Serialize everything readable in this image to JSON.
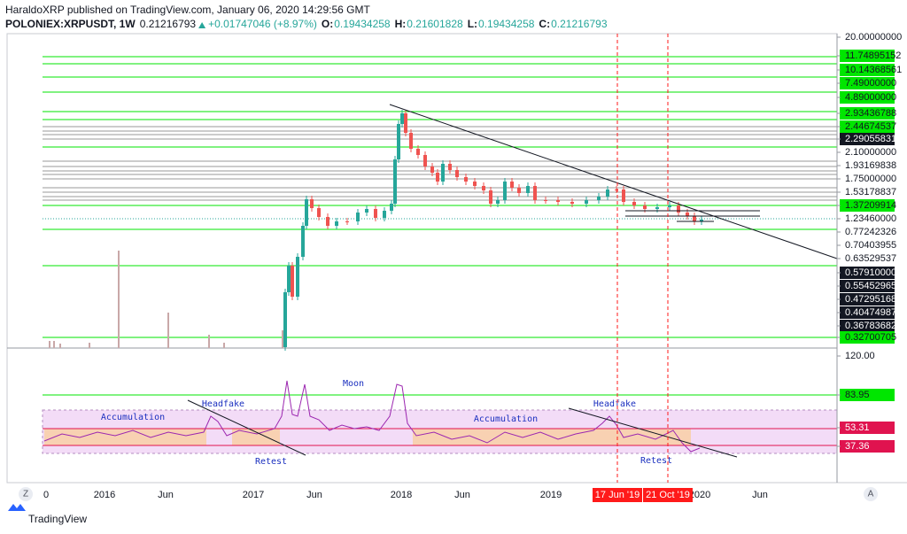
{
  "header": {
    "line1": "HaraldoXRP published on TradingView.com, January 06, 2020 14:29:56 GMT",
    "symbol": "POLONIEX:XRPUSDT, 1W",
    "last": "0.21216793",
    "change": "+0.01747046 (+8.97%)",
    "o_label": "O:",
    "o": "0.19434258",
    "h_label": "H:",
    "h": "0.21601828",
    "l_label": "L:",
    "l": "0.19434258",
    "c_label": "C:",
    "c": "0.21216793"
  },
  "price_scale": [
    {
      "text": "20.00000000",
      "style": "plain"
    },
    {
      "text": "11.74895152",
      "style": "green"
    },
    {
      "text": "10.14368561",
      "style": "green"
    },
    {
      "text": "7.49000000",
      "style": "green"
    },
    {
      "text": "4.89000000",
      "style": "green"
    },
    {
      "text": "2.93436788",
      "style": "green"
    },
    {
      "text": "2.44674537",
      "style": "green"
    },
    {
      "text": "2.29055831",
      "style": "black"
    },
    {
      "text": "2.10000000",
      "style": "plain"
    },
    {
      "text": "1.93169838",
      "style": "plain"
    },
    {
      "text": "1.75000000",
      "style": "plain"
    },
    {
      "text": "1.53178837",
      "style": "plain"
    },
    {
      "text": "1.37209914",
      "style": "green"
    },
    {
      "text": "1.23460000",
      "style": "plain"
    },
    {
      "text": "0.77242326",
      "style": "plain"
    },
    {
      "text": "0.70403955",
      "style": "plain"
    },
    {
      "text": "0.63529537",
      "style": "plain"
    },
    {
      "text": "0.57910000",
      "style": "black"
    },
    {
      "text": "0.55452965",
      "style": "black"
    },
    {
      "text": "0.47295168",
      "style": "black"
    },
    {
      "text": "0.40474987",
      "style": "black"
    },
    {
      "text": "0.36783682",
      "style": "black"
    },
    {
      "text": "0.32700705",
      "style": "green"
    }
  ],
  "indicator_scale": [
    {
      "text": "120.00",
      "style": "plain"
    },
    {
      "text": "83.95",
      "style": "green"
    },
    {
      "text": "53.31",
      "style": "red"
    },
    {
      "text": "37.36",
      "style": "red"
    }
  ],
  "annotations": [
    "Accumulation",
    "Headfake",
    "Retest",
    "Moon",
    "Accumulation",
    "Headfake",
    "Retest"
  ],
  "time_axis": [
    "0",
    "2016",
    "Jun",
    "2017",
    "Jun",
    "2018",
    "Jun",
    "2019",
    "2020",
    "Jun"
  ],
  "markers": [
    "17 Jun '19",
    "21 Oct '19"
  ],
  "buttons": [
    "Z",
    "A"
  ],
  "footer": "TradingView"
}
